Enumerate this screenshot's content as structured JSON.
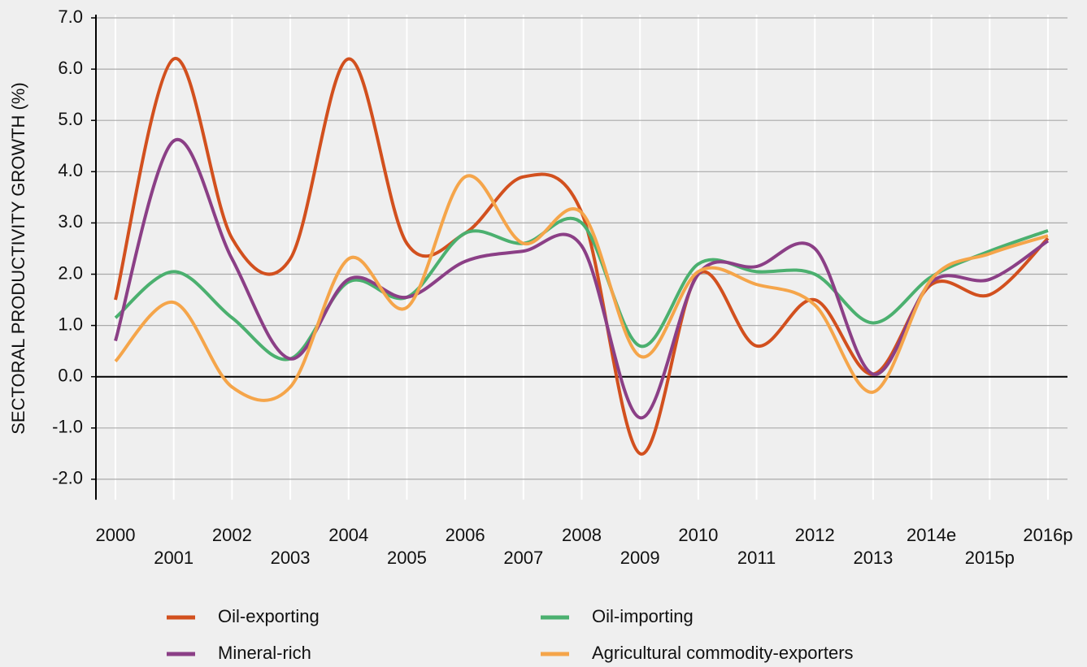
{
  "chart_data": {
    "type": "line",
    "y_label": "SECTORAL PRODUCTIVITY GROWTH (%)",
    "categories": [
      "2000",
      "2001",
      "2002",
      "2003",
      "2004",
      "2005",
      "2006",
      "2007",
      "2008",
      "2009",
      "2010",
      "2011",
      "2012",
      "2013",
      "2014e",
      "2015p",
      "2016p"
    ],
    "ylim": [
      -2.4,
      7.0
    ],
    "yticks": [
      {
        "value": 7,
        "label": "7.0"
      },
      {
        "value": 6,
        "label": "6.0"
      },
      {
        "value": 5,
        "label": "5.0"
      },
      {
        "value": 4,
        "label": "4.0"
      },
      {
        "value": 3,
        "label": "3.0"
      },
      {
        "value": 2,
        "label": "2.0"
      },
      {
        "value": 1,
        "label": "1.0"
      },
      {
        "value": 0,
        "label": "0.0"
      },
      {
        "value": -1,
        "label": "-1.0"
      },
      {
        "value": -2,
        "label": "-2.0"
      }
    ],
    "grid": true,
    "series": [
      {
        "name": "Oil-exporting",
        "color": "#d2501e",
        "values": [
          1.5,
          6.2,
          2.7,
          2.3,
          6.2,
          2.6,
          2.8,
          3.9,
          3.2,
          -1.5,
          2.0,
          0.6,
          1.5,
          0.05,
          1.8,
          1.6,
          2.7
        ]
      },
      {
        "name": "Oil-importing",
        "color": "#4bb06f",
        "values": [
          1.15,
          2.05,
          1.15,
          0.35,
          1.85,
          1.55,
          2.8,
          2.6,
          3.0,
          0.6,
          2.2,
          2.05,
          2.0,
          1.05,
          1.95,
          2.45,
          2.85
        ]
      },
      {
        "name": "Mineral-rich",
        "color": "#8b3f86",
        "values": [
          0.7,
          4.6,
          2.3,
          0.35,
          1.9,
          1.55,
          2.25,
          2.45,
          2.55,
          -0.8,
          2.0,
          2.15,
          2.5,
          0.05,
          1.85,
          1.9,
          2.65
        ]
      },
      {
        "name": "Agricultural commodity-exporters",
        "color": "#f5a54a",
        "values": [
          0.3,
          1.45,
          -0.2,
          -0.2,
          2.3,
          1.35,
          3.9,
          2.6,
          3.2,
          0.4,
          2.05,
          1.8,
          1.4,
          -0.3,
          1.9,
          2.4,
          2.75
        ]
      }
    ]
  }
}
